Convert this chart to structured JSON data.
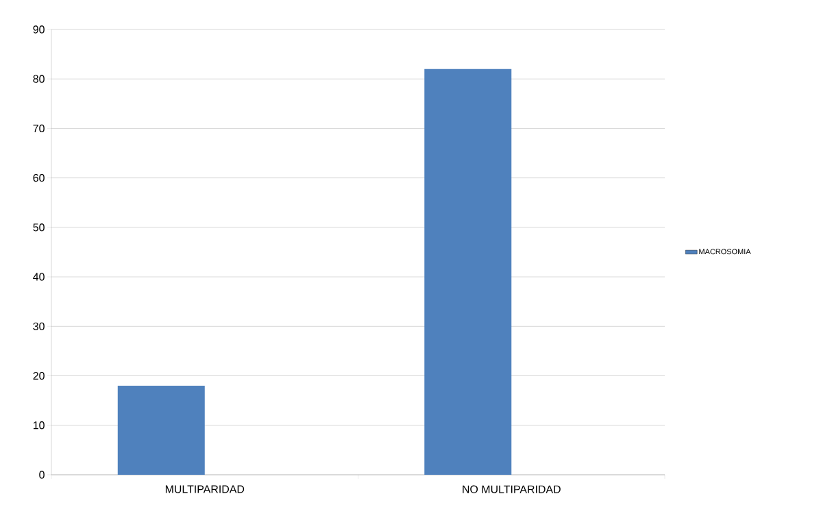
{
  "chart_data": {
    "type": "bar",
    "categories": [
      "MULTIPARIDAD",
      "NO MULTIPARIDAD"
    ],
    "series": [
      {
        "name": "MACROSOMIA",
        "color": "#4f81bd",
        "values": [
          18,
          82
        ]
      }
    ],
    "ylim": [
      0,
      90
    ],
    "yticks": [
      0,
      10,
      20,
      30,
      40,
      50,
      60,
      70,
      80,
      90
    ],
    "grid": "y",
    "legend": "right"
  }
}
